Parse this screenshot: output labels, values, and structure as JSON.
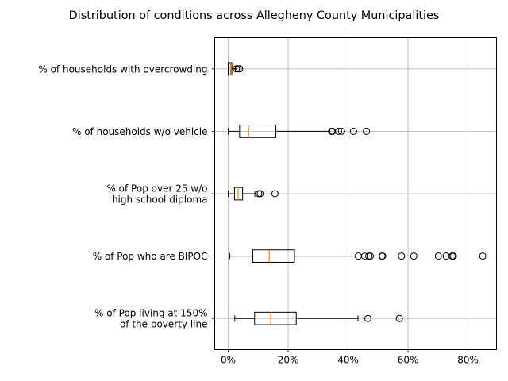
{
  "chart_data": {
    "type": "boxplot",
    "orientation": "horizontal",
    "title": "Distribution of conditions across Allegheny County Municipalities",
    "xlim": [
      -0.045,
      0.895
    ],
    "x_ticks": [
      0,
      0.2,
      0.4,
      0.6,
      0.8
    ],
    "x_tick_labels": [
      "0%",
      "20%",
      "40%",
      "60%",
      "80%"
    ],
    "grid": true,
    "colors": {
      "box": "#000000",
      "median": "#ff7f0e",
      "grid": "#b0b0b0"
    },
    "categories": [
      {
        "label_lines": [
          "% of Pop living at 150%",
          "of the poverty line"
        ],
        "whisker_low": 0.022,
        "q1": 0.088,
        "median": 0.142,
        "q3": 0.227,
        "whisker_high": 0.433,
        "fliers": [
          0.466,
          0.571
        ]
      },
      {
        "label_lines": [
          "% of Pop who are BIPOC"
        ],
        "whisker_low": 0.005,
        "q1": 0.082,
        "median": 0.137,
        "q3": 0.221,
        "whisker_high": 0.426,
        "fliers": [
          0.434,
          0.455,
          0.469,
          0.474,
          0.513,
          0.515,
          0.578,
          0.619,
          0.701,
          0.727,
          0.747,
          0.751,
          0.849
        ]
      },
      {
        "label_lines": [
          "% of Pop over 25 w/o",
          "high school diploma"
        ],
        "whisker_low": 0.0,
        "q1": 0.021,
        "median": 0.033,
        "q3": 0.048,
        "whisker_high": 0.089,
        "fliers": [
          0.102,
          0.107,
          0.156
        ]
      },
      {
        "label_lines": [
          "% of households w/o vehicle"
        ],
        "whisker_low": 0.0,
        "q1": 0.038,
        "median": 0.068,
        "q3": 0.159,
        "whisker_high": 0.339,
        "fliers": [
          0.345,
          0.348,
          0.368,
          0.378,
          0.418,
          0.461
        ]
      },
      {
        "label_lines": [
          "% of households with overcrowding"
        ],
        "whisker_low": 0.0,
        "q1": 0.0,
        "median": 0.008,
        "q3": 0.012,
        "whisker_high": 0.024,
        "fliers": [
          0.027,
          0.033,
          0.038
        ]
      }
    ]
  }
}
